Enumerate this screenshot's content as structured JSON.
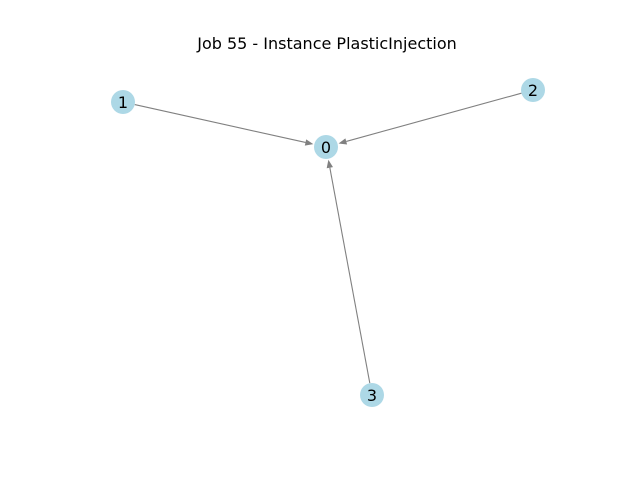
{
  "title": "Job 55 - Instance PlasticInjection",
  "colors": {
    "node_fill": "#add8e6",
    "edge": "#808080",
    "text": "#000000",
    "background": "#ffffff"
  },
  "nodes": [
    {
      "id": "n0",
      "label": "0"
    },
    {
      "id": "n1",
      "label": "1"
    },
    {
      "id": "n2",
      "label": "2"
    },
    {
      "id": "n3",
      "label": "3"
    }
  ],
  "edges": [
    {
      "from": "n1",
      "to": "n0"
    },
    {
      "from": "n2",
      "to": "n0"
    },
    {
      "from": "n3",
      "to": "n0"
    }
  ]
}
